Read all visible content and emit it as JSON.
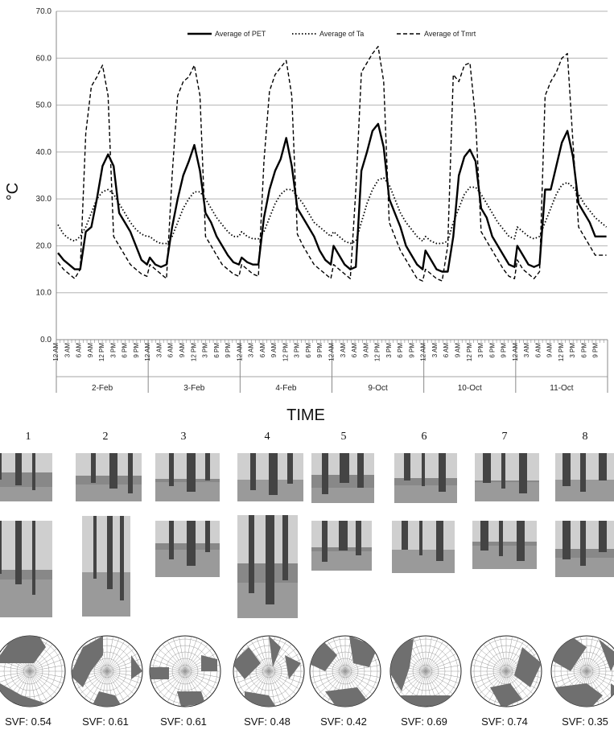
{
  "chart_data": {
    "type": "line",
    "ylabel": "°C",
    "xlabel": "TIME",
    "ylim": [
      0,
      70
    ],
    "yticks": [
      "0.0",
      "10.0",
      "20.0",
      "30.0",
      "40.0",
      "50.0",
      "60.0",
      "70.0"
    ],
    "grid": true,
    "legend_position": "top-center",
    "days": [
      "2-Feb",
      "3-Feb",
      "4-Feb",
      "9-Oct",
      "10-Oct",
      "11-Oct"
    ],
    "hour_ticks": [
      "12 AM",
      "3 AM",
      "6 AM",
      "9 AM",
      "12 PM",
      "3 PM",
      "6 PM",
      "9 PM"
    ],
    "series": [
      {
        "name": "Average of PET",
        "style": "solid",
        "color": "#000000",
        "days": [
          [
            18.5,
            17,
            16,
            15,
            15,
            23,
            24,
            30,
            37,
            39.5,
            37,
            27,
            25,
            23,
            20,
            17,
            16
          ],
          [
            17.5,
            16,
            15.5,
            16,
            24,
            30,
            35,
            38,
            41.5,
            36,
            27,
            25,
            22,
            20,
            18,
            16.5,
            16
          ],
          [
            17.5,
            16.5,
            16,
            16,
            26,
            32,
            36,
            38.5,
            43,
            37,
            28,
            26,
            24,
            22,
            19,
            17,
            16
          ],
          [
            20,
            18,
            16,
            15,
            15.5,
            36,
            40,
            44.5,
            46,
            41,
            30,
            27,
            24,
            20,
            18,
            16,
            15
          ],
          [
            19,
            17,
            15,
            14.5,
            14.5,
            22,
            35,
            39,
            40.5,
            38,
            28,
            26,
            22,
            20,
            18,
            16,
            15.5
          ],
          [
            20,
            18,
            16,
            15.5,
            16,
            32,
            32,
            37,
            42,
            44.5,
            39,
            29,
            27,
            25,
            22,
            22,
            22
          ]
        ]
      },
      {
        "name": "Average of Ta",
        "style": "dotted",
        "color": "#000000",
        "days": [
          [
            24.5,
            22.5,
            21.5,
            21,
            22,
            24,
            27,
            30,
            31.5,
            32,
            31,
            29,
            27,
            25,
            23.5,
            22.5,
            22
          ],
          [
            22,
            21,
            20.5,
            20.5,
            22,
            25,
            28,
            30,
            31.5,
            31.5,
            30,
            28,
            26,
            24.5,
            23,
            22,
            22
          ],
          [
            23,
            22,
            21.5,
            21.5,
            23,
            26,
            29,
            31,
            32,
            32,
            30.5,
            29,
            27,
            25,
            24,
            23,
            22
          ],
          [
            23,
            22,
            21,
            20.5,
            21,
            25,
            29,
            32,
            34,
            34.5,
            33,
            30,
            27,
            25,
            23.5,
            22,
            21
          ],
          [
            22,
            21,
            20.5,
            20.5,
            21,
            25,
            28,
            31,
            32.5,
            32.5,
            31,
            29,
            27,
            25,
            23.5,
            22,
            21.5
          ],
          [
            24,
            23,
            22,
            21.5,
            22,
            25,
            28,
            31,
            33,
            33.5,
            32.5,
            31,
            29,
            27.5,
            26,
            25,
            24
          ]
        ]
      },
      {
        "name": "Average of Tmrt",
        "style": "dashed",
        "color": "#000000",
        "days": [
          [
            16.5,
            15,
            14,
            13,
            15,
            44,
            54,
            56,
            58.5,
            52,
            22,
            20,
            18,
            16,
            15,
            14,
            13.5
          ],
          [
            16,
            15,
            14,
            13,
            35,
            52,
            55,
            56,
            58.5,
            52,
            22,
            20,
            18,
            16,
            15,
            14,
            13.5
          ],
          [
            16,
            15,
            14,
            13.5,
            38,
            53,
            56.5,
            58,
            59.5,
            52,
            22.5,
            20,
            18,
            16,
            15,
            14,
            13
          ],
          [
            16,
            15,
            14,
            13,
            32,
            57,
            59,
            61,
            62.5,
            55,
            25,
            22,
            19,
            17,
            15,
            13,
            12.5
          ],
          [
            15,
            14,
            13,
            12.5,
            20,
            56.5,
            55,
            58.5,
            59,
            47,
            23,
            21,
            19,
            17,
            15,
            13.5,
            13
          ],
          [
            17,
            15,
            14,
            13,
            14.5,
            52,
            55,
            57,
            60,
            61,
            42,
            24,
            22,
            20,
            18,
            18,
            18
          ]
        ]
      }
    ]
  },
  "sites": [
    {
      "num": "1",
      "svf": "SVF: 0.54"
    },
    {
      "num": "2",
      "svf": "SVF: 0.61"
    },
    {
      "num": "3",
      "svf": "SVF: 0.61"
    },
    {
      "num": "4",
      "svf": "SVF: 0.48"
    },
    {
      "num": "5",
      "svf": "SVF: 0.42"
    },
    {
      "num": "6",
      "svf": "SVF: 0.69"
    },
    {
      "num": "7",
      "svf": "SVF: 0.74"
    },
    {
      "num": "8",
      "svf": "SVF: 0.35"
    }
  ],
  "colors": {
    "grid": "#b3b3b3",
    "axis": "#888888",
    "mask": "#6f6f6f"
  }
}
